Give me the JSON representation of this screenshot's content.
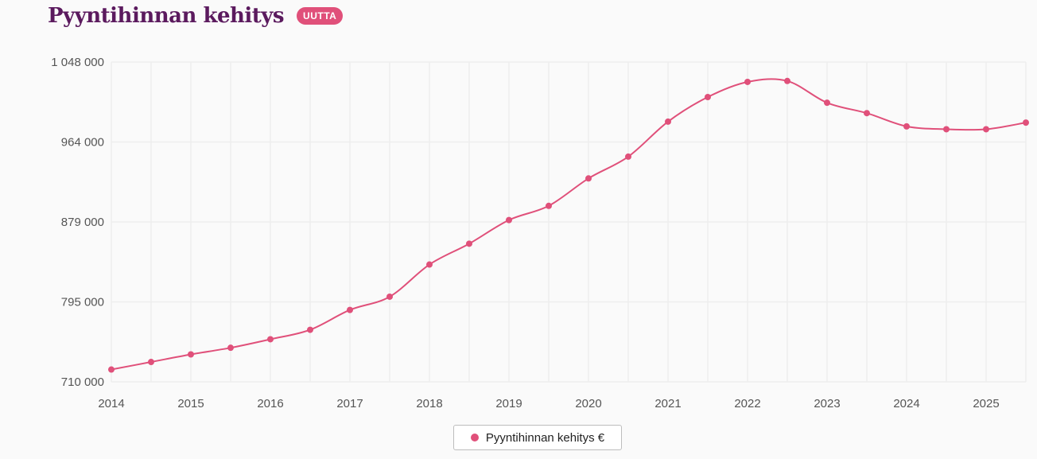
{
  "header": {
    "title": "Pyyntihinnan kehitys",
    "badge": "UUTTA"
  },
  "colors": {
    "title": "#5b1a5e",
    "badge": "#e0507a",
    "series": "#e0507a",
    "grid": "#eeeeee"
  },
  "chart_data": {
    "type": "line",
    "title": "Pyyntihinnan kehitys",
    "xlabel": "",
    "ylabel": "",
    "x_ticks": [
      "2014",
      "2015",
      "2016",
      "2017",
      "2018",
      "2019",
      "2020",
      "2021",
      "2022",
      "2023",
      "2024",
      "2025"
    ],
    "y_ticks": [
      "1 048 000",
      "964 000",
      "879 000",
      "795 000",
      "710 000"
    ],
    "ylim": [
      710000,
      1048000
    ],
    "xlim": [
      2014,
      2025.5
    ],
    "grid": true,
    "legend_position": "bottom-center",
    "series": [
      {
        "name": "Pyyntihinnan kehitys €",
        "x": [
          2014,
          2014.5,
          2015,
          2015.5,
          2016,
          2016.5,
          2017,
          2017.5,
          2018,
          2018.5,
          2019,
          2019.5,
          2020,
          2020.5,
          2021,
          2021.5,
          2022,
          2022.5,
          2023,
          2023.5,
          2024,
          2024.5,
          2025,
          2025.5
        ],
        "values": [
          723000,
          731000,
          739000,
          746000,
          755000,
          765000,
          786000,
          800000,
          834000,
          856000,
          881000,
          896000,
          925000,
          948000,
          985000,
          1011000,
          1027000,
          1028000,
          1005000,
          994000,
          980000,
          977000,
          977000,
          984000
        ]
      }
    ]
  }
}
